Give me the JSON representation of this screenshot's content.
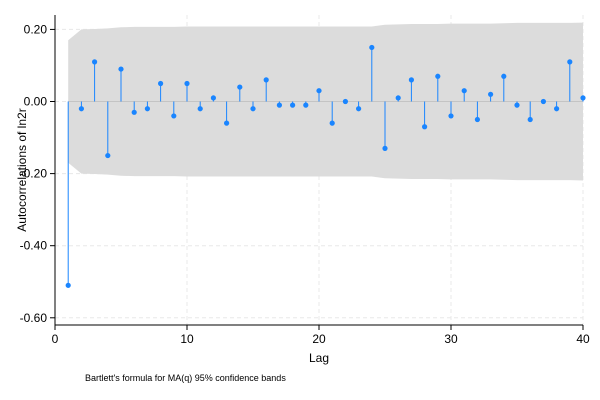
{
  "chart_data": {
    "type": "stem",
    "xlabel": "Lag",
    "ylabel": "Autocorrelations of ln2r",
    "note": "Bartlett's formula for MA(q) 95% confidence bands",
    "xlim": [
      0,
      40
    ],
    "ylim": [
      -0.62,
      0.24
    ],
    "xticks": [
      0,
      10,
      20,
      30,
      40
    ],
    "xtick_labels": [
      "0",
      "10",
      "20",
      "30",
      "40"
    ],
    "yticks": [
      0.2,
      0.0,
      -0.2,
      -0.4,
      -0.6
    ],
    "ytick_labels": [
      "0.20",
      "0.00",
      "-0.20",
      "-0.40",
      "-0.60"
    ],
    "grid": true,
    "colors": {
      "series": "#1a85ff",
      "band": "#dcdcdc",
      "grid": "#e8e8e8"
    },
    "lags": [
      1,
      2,
      3,
      4,
      5,
      6,
      7,
      8,
      9,
      10,
      11,
      12,
      13,
      14,
      15,
      16,
      17,
      18,
      19,
      20,
      21,
      22,
      23,
      24,
      25,
      26,
      27,
      28,
      29,
      30,
      31,
      32,
      33,
      34,
      35,
      36,
      37,
      38,
      39,
      40
    ],
    "acf": [
      -0.51,
      -0.02,
      0.11,
      -0.15,
      0.09,
      -0.03,
      -0.02,
      0.05,
      -0.04,
      0.05,
      -0.02,
      0.01,
      -0.06,
      0.04,
      -0.02,
      0.06,
      -0.01,
      -0.01,
      -0.01,
      0.03,
      -0.06,
      0.0,
      -0.02,
      0.15,
      -0.13,
      0.01,
      0.06,
      -0.07,
      0.07,
      -0.04,
      0.03,
      -0.05,
      0.02,
      0.07,
      -0.01,
      -0.05,
      0.0,
      -0.02,
      0.11,
      0.01
    ],
    "band_upper": [
      0.17,
      0.2,
      0.201,
      0.203,
      0.206,
      0.207,
      0.207,
      0.207,
      0.207,
      0.208,
      0.208,
      0.208,
      0.208,
      0.208,
      0.208,
      0.208,
      0.208,
      0.208,
      0.208,
      0.208,
      0.208,
      0.208,
      0.208,
      0.208,
      0.213,
      0.214,
      0.215,
      0.215,
      0.215,
      0.216,
      0.216,
      0.216,
      0.216,
      0.217,
      0.218,
      0.218,
      0.218,
      0.218,
      0.218,
      0.219
    ]
  }
}
